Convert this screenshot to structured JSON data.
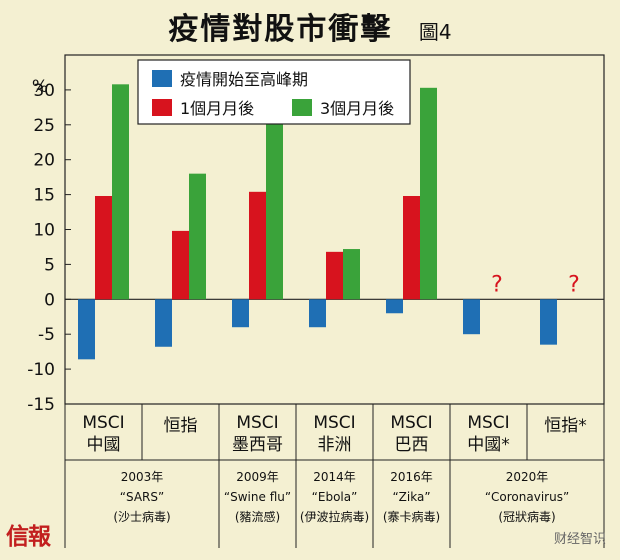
{
  "title": "疫情對股市衝擊",
  "figure_label": "圖4",
  "brand": "信報",
  "wechat_watermark": "财经智识",
  "colors": {
    "background": "#f4f0d2",
    "series_blue": "#1f6fb4",
    "series_red": "#d7131e",
    "series_green": "#3aa33a"
  },
  "chart_data": {
    "type": "bar",
    "ylabel": "%",
    "ylim": [
      -15,
      35
    ],
    "yticks": [
      30,
      25,
      20,
      15,
      10,
      5,
      0,
      -5,
      -10,
      -15
    ],
    "grid": false,
    "legend_position": "top",
    "categories": [
      [
        "MSCI",
        "中國"
      ],
      [
        "恒指"
      ],
      [
        "MSCI",
        "墨西哥"
      ],
      [
        "MSCI",
        "非洲"
      ],
      [
        "MSCI",
        "巴西"
      ],
      [
        "MSCI",
        "中國*"
      ],
      [
        "恒指*"
      ]
    ],
    "series": [
      {
        "name": "疫情開始至高峰期",
        "color": "#1f6fb4",
        "values": [
          -8.6,
          -6.8,
          -4.0,
          -4.0,
          -2.0,
          -5.0,
          -6.5
        ]
      },
      {
        "name": "1個月月後",
        "color": "#d7131e",
        "values": [
          14.8,
          9.8,
          15.4,
          6.8,
          14.8,
          null,
          null
        ]
      },
      {
        "name": "3個月月後",
        "color": "#3aa33a",
        "values": [
          30.8,
          18.0,
          25.8,
          7.2,
          30.3,
          null,
          null
        ]
      }
    ],
    "missing_marker": "?",
    "events": [
      {
        "lines": [
          "2003年",
          "“SARS”",
          "(沙士病毒)"
        ],
        "categories": [
          0,
          1
        ]
      },
      {
        "lines": [
          "2009年",
          "“Swine flu”",
          "(豬流感)"
        ],
        "categories": [
          2
        ]
      },
      {
        "lines": [
          "2014年",
          "“Ebola”",
          "(伊波拉病毒)"
        ],
        "categories": [
          3
        ]
      },
      {
        "lines": [
          "2016年",
          "“Zika”",
          "(寨卡病毒)"
        ],
        "categories": [
          4
        ]
      },
      {
        "lines": [
          "2020年",
          "“Coronavirus”",
          "(冠狀病毒)"
        ],
        "categories": [
          5,
          6
        ]
      }
    ]
  }
}
